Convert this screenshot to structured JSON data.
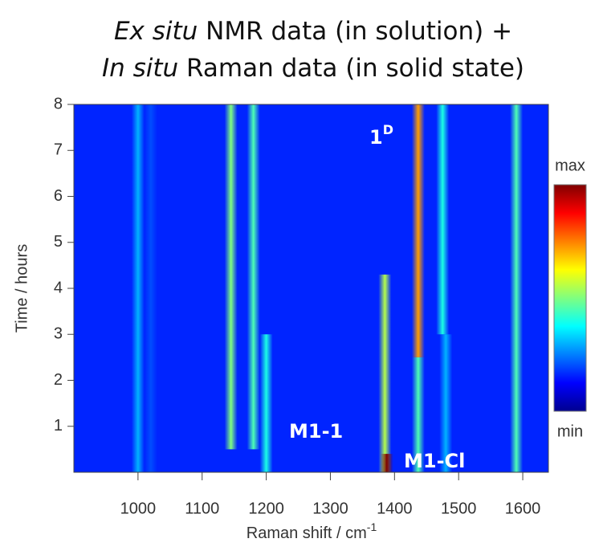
{
  "chart_data": {
    "type": "heatmap-bands",
    "title_lines": [
      [
        {
          "text": "Ex situ",
          "italic": true
        },
        {
          "text": " NMR data (in solution) +",
          "italic": false
        }
      ],
      [
        {
          "text": "In situ",
          "italic": true
        },
        {
          "text": " Raman data (in solid state)",
          "italic": false
        }
      ]
    ],
    "x_label": {
      "text": "Raman shift / cm",
      "sup": "-1"
    },
    "y_label": "Time / hours",
    "xlim": [
      900,
      1640
    ],
    "ylim": [
      0,
      8
    ],
    "xticks": [
      1000,
      1100,
      1200,
      1300,
      1400,
      1500,
      1600
    ],
    "yticks": [
      1,
      2,
      3,
      4,
      5,
      6,
      7,
      8
    ],
    "colorbar": {
      "max_label": "max",
      "min_label": "min"
    },
    "bands": [
      {
        "x": 1000,
        "t": [
          0,
          8
        ],
        "intensity": 0.3
      },
      {
        "x": 1020,
        "t": [
          0,
          8
        ],
        "intensity": 0.2
      },
      {
        "x": 1145,
        "t": [
          0.5,
          8
        ],
        "intensity": 0.5
      },
      {
        "x": 1180,
        "t": [
          0.5,
          8
        ],
        "intensity": 0.45
      },
      {
        "x": 1200,
        "t": [
          0,
          3
        ],
        "intensity": 0.4
      },
      {
        "x": 1385,
        "t": [
          0,
          4.3
        ],
        "intensity": 0.55
      },
      {
        "x": 1388,
        "t": [
          0,
          0.4
        ],
        "intensity": 1
      },
      {
        "x": 1437,
        "t": [
          2.5,
          8
        ],
        "intensity": 0.72
      },
      {
        "x": 1437,
        "t": [
          0,
          2.5
        ],
        "intensity": 0.45
      },
      {
        "x": 1475,
        "t": [
          3,
          8
        ],
        "intensity": 0.4
      },
      {
        "x": 1480,
        "t": [
          0,
          3
        ],
        "intensity": 0.3
      },
      {
        "x": 1590,
        "t": [
          0,
          8
        ],
        "intensity": 0.45
      }
    ],
    "annotations": [
      {
        "text": "1",
        "sup": "D"
      },
      {
        "text": "M1-1"
      },
      {
        "text": "M1-Cl"
      }
    ]
  }
}
